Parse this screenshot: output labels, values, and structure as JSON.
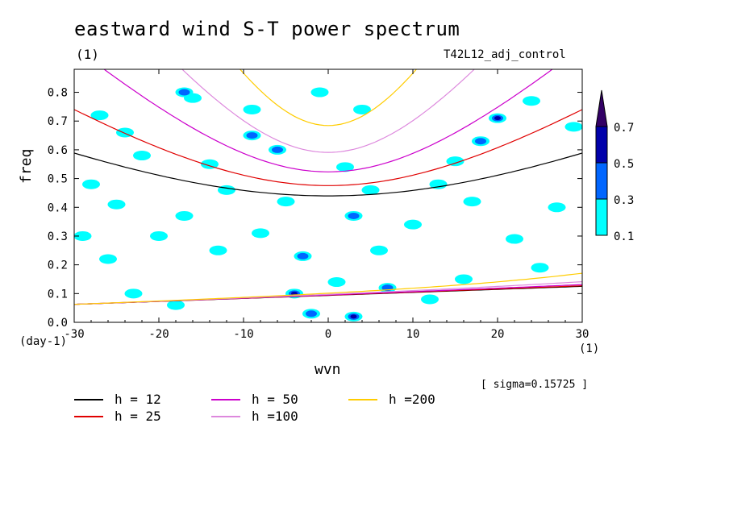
{
  "title": "eastward wind S-T power spectrum",
  "subtitle": "(1)",
  "run_name": "T42L12_adj_control",
  "sigma_text": "[ sigma=0.15725 ]",
  "colors": {
    "h12": "#000000",
    "h25": "#e00000",
    "h50": "#cc00cc",
    "h100": "#dd88dd",
    "h200": "#ffcc00",
    "level_01": "#00ffff",
    "level_03": "#0066ff",
    "level_05": "#0000aa",
    "level_07": "#330066"
  },
  "chart_data": {
    "type": "heatmap",
    "xlabel": "wvn",
    "x_unit": "(1)",
    "ylabel": "freq",
    "y_unit": "(day-1)",
    "xlim": [
      -30,
      30
    ],
    "ylim": [
      0,
      0.88
    ],
    "x_ticks": [
      -30,
      -20,
      -10,
      0,
      10,
      20,
      30
    ],
    "y_ticks": [
      0.0,
      0.1,
      0.2,
      0.3,
      0.4,
      0.5,
      0.6,
      0.7,
      0.8
    ],
    "x_tick_labels": [
      "-30",
      "-20",
      "-10",
      "0",
      "10",
      "20",
      "30"
    ],
    "y_tick_labels": [
      "0.0",
      "0.1",
      "0.2",
      "0.3",
      "0.4",
      "0.5",
      "0.6",
      "0.7",
      "0.8"
    ],
    "colorbar": {
      "levels": [
        0.1,
        0.3,
        0.5,
        0.7
      ],
      "labels": [
        "0.1",
        "0.3",
        "0.5",
        "0.7"
      ],
      "colors": [
        "#00ffff",
        "#0066ff",
        "#0000aa",
        "#330066"
      ]
    },
    "blobs": [
      {
        "x": -27,
        "y": 0.72,
        "level": 0.1
      },
      {
        "x": -24,
        "y": 0.66,
        "level": 0.1
      },
      {
        "x": -22,
        "y": 0.58,
        "level": 0.1
      },
      {
        "x": -28,
        "y": 0.48,
        "level": 0.1
      },
      {
        "x": -25,
        "y": 0.41,
        "level": 0.1
      },
      {
        "x": -20,
        "y": 0.3,
        "level": 0.1
      },
      {
        "x": -26,
        "y": 0.22,
        "level": 0.1
      },
      {
        "x": -23,
        "y": 0.1,
        "level": 0.1
      },
      {
        "x": -16,
        "y": 0.78,
        "level": 0.1
      },
      {
        "x": -14,
        "y": 0.55,
        "level": 0.1
      },
      {
        "x": -12,
        "y": 0.46,
        "level": 0.1
      },
      {
        "x": -17,
        "y": 0.37,
        "level": 0.1
      },
      {
        "x": -13,
        "y": 0.25,
        "level": 0.1
      },
      {
        "x": -9,
        "y": 0.65,
        "level": 0.3
      },
      {
        "x": -9,
        "y": 0.74,
        "level": 0.1
      },
      {
        "x": -6,
        "y": 0.6,
        "level": 0.3
      },
      {
        "x": -5,
        "y": 0.42,
        "level": 0.1
      },
      {
        "x": -8,
        "y": 0.31,
        "level": 0.1
      },
      {
        "x": -3,
        "y": 0.23,
        "level": 0.3
      },
      {
        "x": -4,
        "y": 0.1,
        "level": 0.5
      },
      {
        "x": -2,
        "y": 0.03,
        "level": 0.3
      },
      {
        "x": 3,
        "y": 0.02,
        "level": 0.5
      },
      {
        "x": 2,
        "y": 0.54,
        "level": 0.1
      },
      {
        "x": 5,
        "y": 0.46,
        "level": 0.1
      },
      {
        "x": 3,
        "y": 0.37,
        "level": 0.3
      },
      {
        "x": 6,
        "y": 0.25,
        "level": 0.1
      },
      {
        "x": 1,
        "y": 0.14,
        "level": 0.1
      },
      {
        "x": 7,
        "y": 0.12,
        "level": 0.3
      },
      {
        "x": 10,
        "y": 0.34,
        "level": 0.1
      },
      {
        "x": 13,
        "y": 0.48,
        "level": 0.1
      },
      {
        "x": 15,
        "y": 0.56,
        "level": 0.1
      },
      {
        "x": 18,
        "y": 0.63,
        "level": 0.3
      },
      {
        "x": 20,
        "y": 0.71,
        "level": 0.5
      },
      {
        "x": 17,
        "y": 0.42,
        "level": 0.1
      },
      {
        "x": 22,
        "y": 0.29,
        "level": 0.1
      },
      {
        "x": 25,
        "y": 0.19,
        "level": 0.1
      },
      {
        "x": 27,
        "y": 0.4,
        "level": 0.1
      },
      {
        "x": 24,
        "y": 0.77,
        "level": 0.1
      },
      {
        "x": 29,
        "y": 0.68,
        "level": 0.1
      },
      {
        "x": 12,
        "y": 0.08,
        "level": 0.1
      },
      {
        "x": 16,
        "y": 0.15,
        "level": 0.1
      },
      {
        "x": -18,
        "y": 0.06,
        "level": 0.1
      },
      {
        "x": -29,
        "y": 0.3,
        "level": 0.1
      },
      {
        "x": -1,
        "y": 0.8,
        "level": 0.1
      },
      {
        "x": 4,
        "y": 0.74,
        "level": 0.1
      },
      {
        "x": -17,
        "y": 0.8,
        "level": 0.3
      }
    ],
    "dispersion_curves": [
      {
        "name": "h = 12",
        "key": "h12",
        "speed": 0.145
      },
      {
        "name": "h = 25",
        "key": "h25",
        "speed": 0.21
      },
      {
        "name": "h = 50",
        "key": "h50",
        "speed": 0.297
      },
      {
        "name": "h =100",
        "key": "h100",
        "speed": 0.42
      },
      {
        "name": "h =200",
        "key": "h200",
        "speed": 0.59
      }
    ]
  }
}
